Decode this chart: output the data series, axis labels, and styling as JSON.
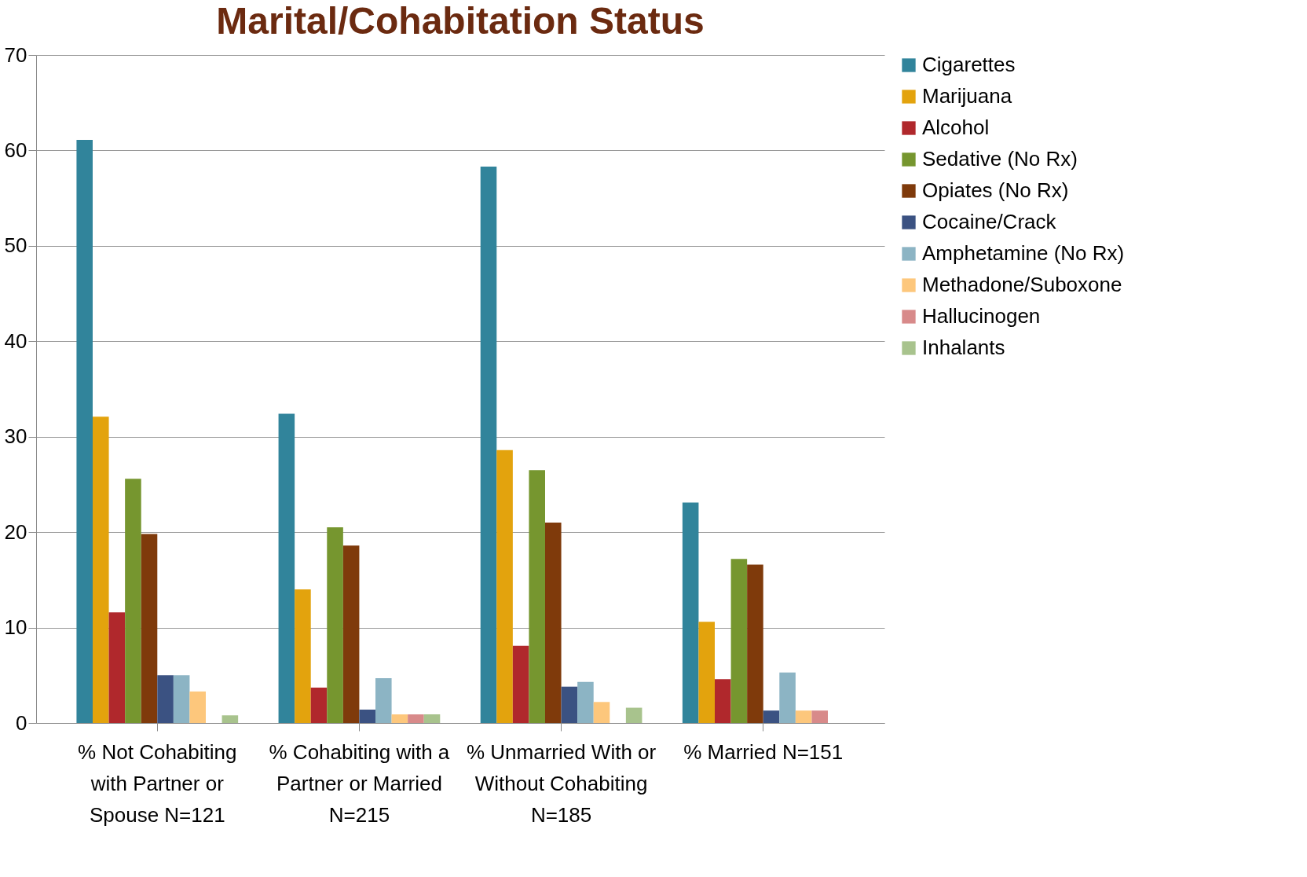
{
  "chart_data": {
    "type": "bar",
    "title": "Marital/Cohabitation Status",
    "categories": [
      "% Not Cohabiting with Partner or Spouse N=121",
      "% Cohabiting with a Partner or Married N=215",
      "% Unmarried With or Without Cohabiting N=185",
      "% Married N=151"
    ],
    "series": [
      {
        "name": "Cigarettes",
        "color": "#31849b",
        "values": [
          61.1,
          32.4,
          58.3,
          23.1
        ]
      },
      {
        "name": "Marijuana",
        "color": "#e3a30d",
        "values": [
          32.1,
          14.0,
          28.6,
          10.6
        ]
      },
      {
        "name": "Alcohol",
        "color": "#b0282c",
        "values": [
          11.6,
          3.7,
          8.1,
          4.6
        ]
      },
      {
        "name": "Sedative (No Rx)",
        "color": "#76962f",
        "values": [
          25.6,
          20.5,
          26.5,
          17.2
        ]
      },
      {
        "name": "Opiates (No Rx)",
        "color": "#7f3a0b",
        "values": [
          19.8,
          18.6,
          21.0,
          16.6
        ]
      },
      {
        "name": "Cocaine/Crack",
        "color": "#3b5282",
        "values": [
          5.0,
          1.4,
          3.8,
          1.3
        ]
      },
      {
        "name": "Amphetamine (No Rx)",
        "color": "#8cb4c4",
        "values": [
          5.0,
          4.7,
          4.3,
          5.3
        ]
      },
      {
        "name": "Methadone/Suboxone",
        "color": "#fdc77c",
        "values": [
          3.3,
          0.9,
          2.2,
          1.3
        ]
      },
      {
        "name": "Hallucinogen",
        "color": "#d88a8a",
        "values": [
          0,
          0.9,
          0,
          1.3
        ]
      },
      {
        "name": "Inhalants",
        "color": "#a8c38d",
        "values": [
          0.8,
          0.9,
          1.6,
          0
        ]
      }
    ],
    "ylim": [
      0,
      70
    ],
    "yticks": [
      0,
      10,
      20,
      30,
      40,
      50,
      60,
      70
    ],
    "grid": "y",
    "legend": "right"
  }
}
